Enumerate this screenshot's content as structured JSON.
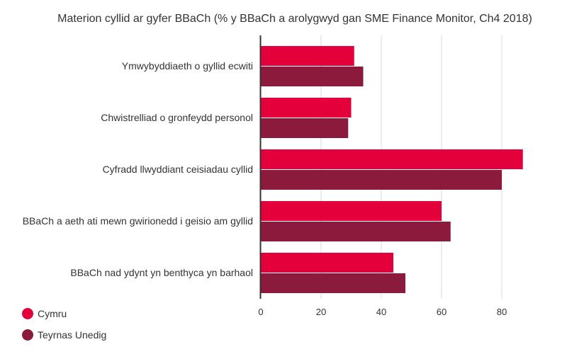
{
  "chart_data": {
    "type": "bar",
    "orientation": "horizontal",
    "title": "Materion cyllid ar gyfer BBaCh (% y BBaCh a arolygwyd gan SME Finance Monitor, Ch4 2018)",
    "categories": [
      "Ymwybyddiaeth o gyllid ecwiti",
      "Chwistrelliad o gronfeydd personol",
      "Cyfradd llwyddiant ceisiadau cyllid",
      "BBaCh a aeth ati mewn gwirionedd i geisio am gyllid",
      "BBaCh nad ydynt yn benthyca yn barhaol"
    ],
    "series": [
      {
        "name": "Cymru",
        "color": "#e4003b",
        "values": [
          31,
          30,
          87,
          60,
          44
        ]
      },
      {
        "name": "Teyrnas Unedig",
        "color": "#8b1a3c",
        "values": [
          34,
          29,
          80,
          63,
          48
        ]
      }
    ],
    "xlim": [
      0,
      90
    ],
    "xticks": [
      0,
      20,
      40,
      60,
      80
    ],
    "grid": true,
    "legend": "bottom-left"
  }
}
